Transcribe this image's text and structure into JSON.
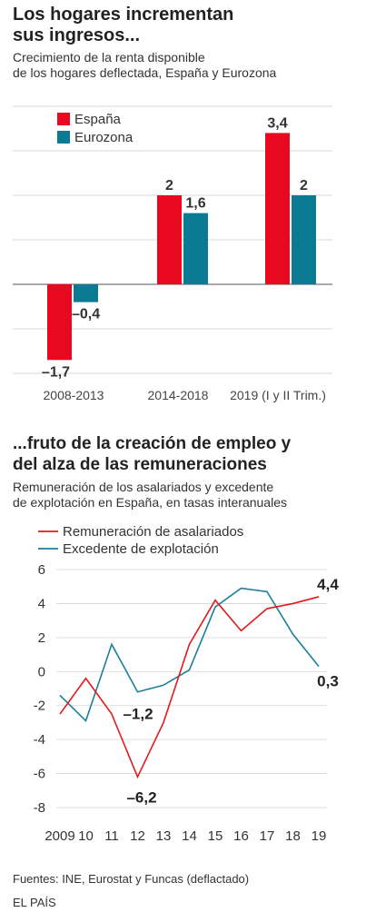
{
  "chart1": {
    "title_line1": "Los hogares incrementan",
    "title_line2": "sus ingresos...",
    "subtitle_line1": "Crecimiento de la renta disponible",
    "subtitle_line2": "de los hogares deflectada, España y Eurozona"
  },
  "chart2": {
    "title_line1": "...fruto de la creación de empleo y",
    "title_line2": "del alza de las remuneraciones",
    "subtitle_line1": "Remuneración de los asalariados y excedente",
    "subtitle_line2": "de explotación en España, en tasas interanuales"
  },
  "colors": {
    "spain": "#e8081f",
    "eurozone": "#0b7b93",
    "red_line": "#e31a1c",
    "teal_line": "#1a7f97"
  },
  "source": "Fuentes: INE, Eurostat y Funcas (deflactado)",
  "publisher": "EL PAÍS",
  "chart_data": [
    {
      "type": "bar",
      "categories": [
        "2008-2013",
        "2014-2018",
        "2019 (I y II Trim.)"
      ],
      "series": [
        {
          "name": "España",
          "values": [
            -1.7,
            2,
            3.4
          ]
        },
        {
          "name": "Eurozona",
          "values": [
            -0.4,
            1.6,
            2
          ]
        }
      ],
      "value_labels": [
        [
          "–1,7",
          "2",
          "3,4"
        ],
        [
          "–0,4",
          "1,6",
          "2"
        ]
      ],
      "ylim": [
        -2,
        4
      ],
      "grid": true,
      "legend": "top-left"
    },
    {
      "type": "line",
      "x": [
        "2009",
        "10",
        "11",
        "12",
        "13",
        "14",
        "15",
        "16",
        "17",
        "18",
        "19"
      ],
      "series": [
        {
          "name": "Remuneración de asalariados",
          "values": [
            -2.5,
            -0.4,
            -2.5,
            -6.2,
            -3.0,
            1.6,
            4.2,
            2.4,
            3.7,
            4.0,
            4.4
          ]
        },
        {
          "name": "Excedente de explotación",
          "values": [
            -1.4,
            -2.9,
            1.6,
            -1.2,
            -0.8,
            0.1,
            3.8,
            4.9,
            4.7,
            2.2,
            0.3
          ]
        }
      ],
      "annotations": [
        "–1,2",
        "–6,2",
        "4,4",
        "0,3"
      ],
      "yticks": [
        "6",
        "4",
        "2",
        "0",
        "-2",
        "-4",
        "-6",
        "-8"
      ],
      "ylim": [
        -8,
        6
      ],
      "grid": true,
      "legend": "top-left"
    }
  ]
}
